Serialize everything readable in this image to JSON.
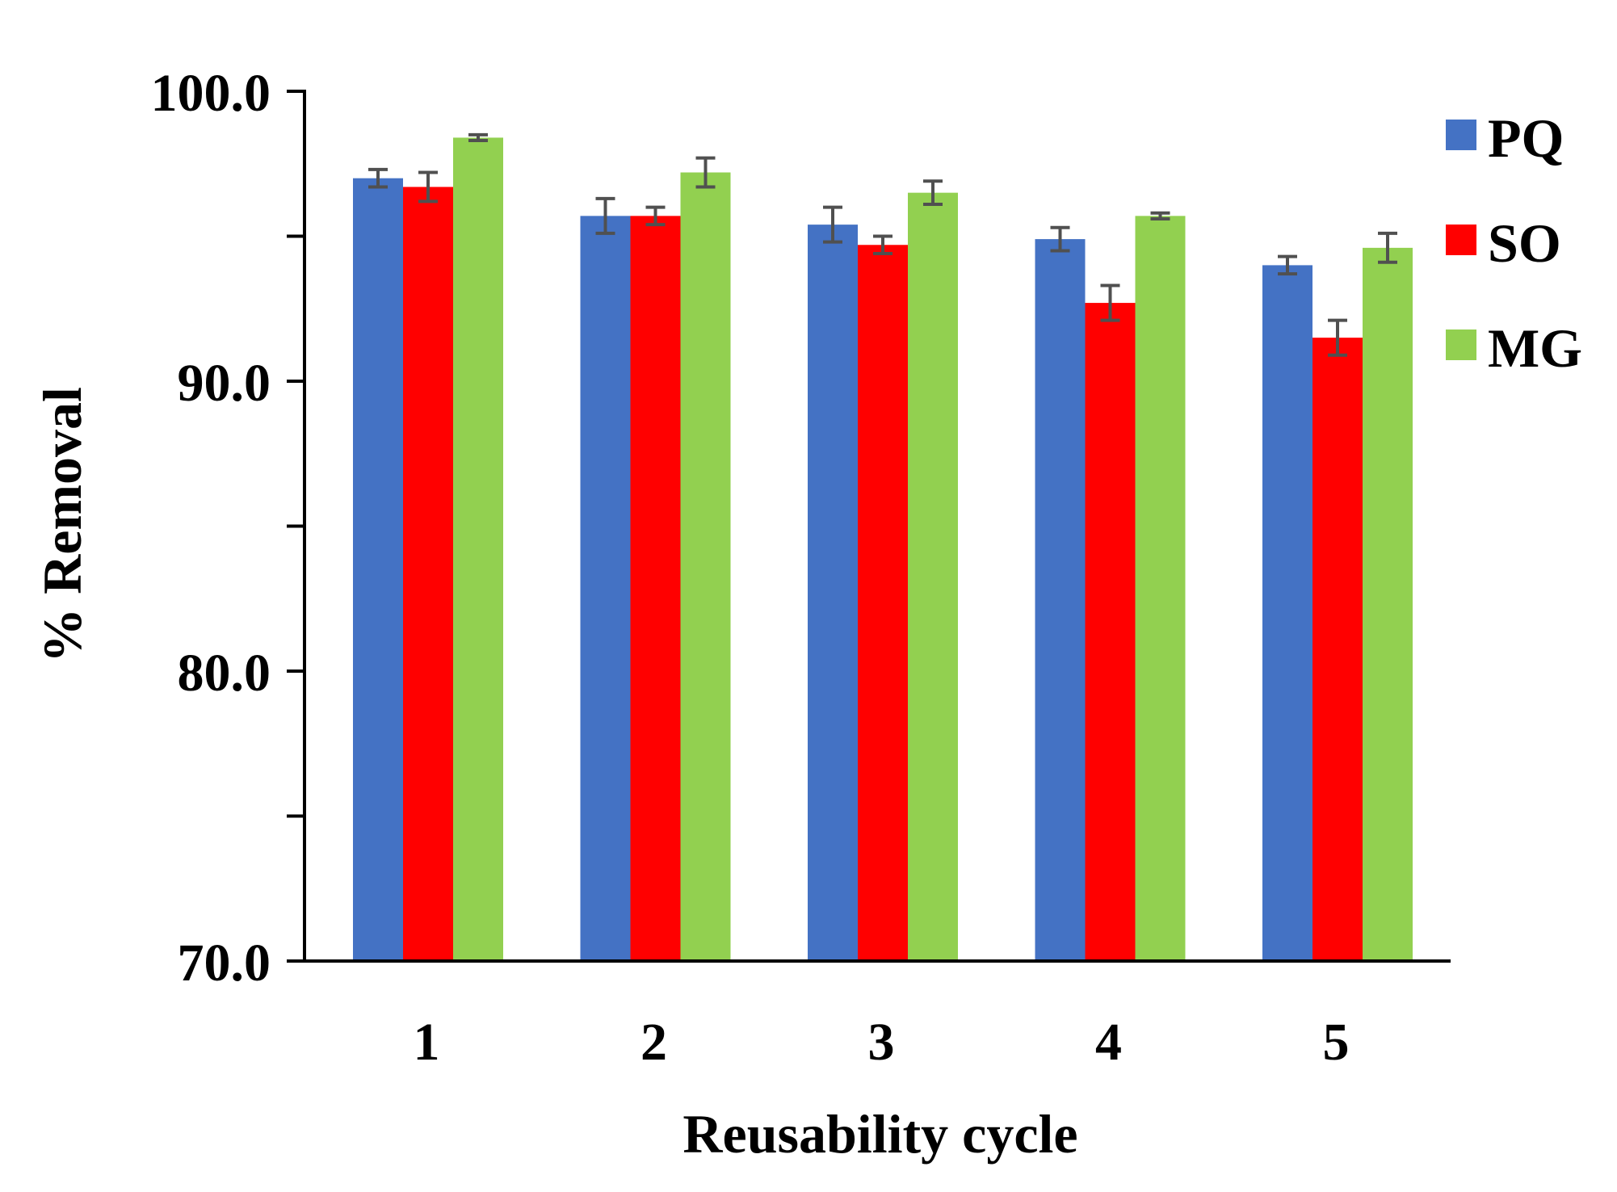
{
  "chart_data": {
    "type": "bar",
    "title": "",
    "xlabel": "Reusability cycle",
    "ylabel": "% Removal",
    "categories": [
      "1",
      "2",
      "3",
      "4",
      "5"
    ],
    "ylim": [
      70,
      100
    ],
    "yticks": [
      70,
      75,
      80,
      85,
      90,
      95,
      100
    ],
    "ytick_labels": [
      "70.0",
      "",
      "80.0",
      "",
      "90.0",
      "",
      "100.0"
    ],
    "grid": false,
    "legend_position": "top-right",
    "series": [
      {
        "name": "PQ",
        "color": "#4472C4",
        "values": [
          97.0,
          95.7,
          95.4,
          94.9,
          94.0
        ],
        "errors": [
          0.3,
          0.6,
          0.6,
          0.4,
          0.3
        ]
      },
      {
        "name": "SO",
        "color": "#FF0000",
        "values": [
          96.7,
          95.7,
          94.7,
          92.7,
          91.5
        ],
        "errors": [
          0.5,
          0.3,
          0.3,
          0.6,
          0.6
        ]
      },
      {
        "name": "MG",
        "color": "#92D050",
        "values": [
          98.4,
          97.2,
          96.5,
          95.7,
          94.6
        ],
        "errors": [
          0.1,
          0.5,
          0.4,
          0.1,
          0.5
        ]
      }
    ]
  }
}
